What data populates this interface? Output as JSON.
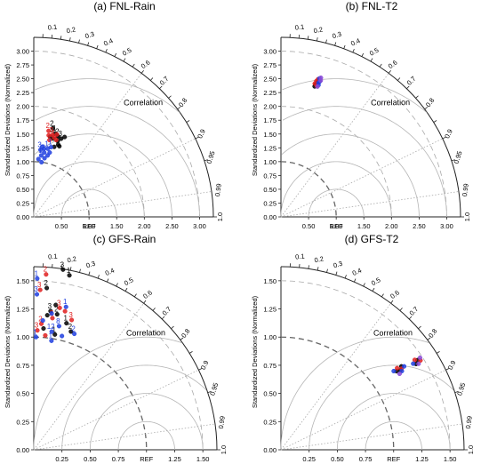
{
  "chart_data": [
    {
      "type": "scatter",
      "title": "(a) FNL-Rain",
      "ylabel": "Standardized Deviations (Normalized)",
      "corr_label": "Correlation",
      "ref_label": "REF",
      "max_sd": 3.25,
      "y_ticks": [
        "0.00",
        "0.25",
        "0.50",
        "0.75",
        "1.00",
        "1.25",
        "1.50",
        "1.75",
        "2.00",
        "2.25",
        "2.50",
        "2.75",
        "3.00"
      ],
      "x_ticks": [
        "0.50",
        "1.00",
        "1.50",
        "2.00",
        "2.50",
        "3.00"
      ],
      "x_tick_values": [
        0.5,
        1.0,
        1.5,
        2.0,
        2.5,
        3.0
      ],
      "corr_labels": [
        "0.1",
        "0.2",
        "0.3",
        "0.4",
        "0.5",
        "0.6",
        "0.7",
        "0.8",
        "0.9",
        "0.95",
        "0.99",
        "1.0"
      ],
      "rms_circles": [
        0.5,
        1.0,
        1.5,
        2.0,
        2.5
      ],
      "dashed_sd": [
        1.0,
        2.0,
        3.0
      ],
      "series": [
        {
          "color": "#000000",
          "points": [
            {
              "r": 1.64,
              "c": 0.21,
              "label": "2"
            },
            {
              "r": 1.56,
              "c": 0.25,
              "label": "1"
            },
            {
              "r": 1.52,
              "c": 0.29,
              "label": "2"
            },
            {
              "r": 1.46,
              "c": 0.24,
              "label": "3"
            },
            {
              "r": 1.44,
              "c": 0.3,
              "label": "3"
            },
            {
              "r": 1.38,
              "c": 0.32,
              "label": ""
            },
            {
              "r": 1.32,
              "c": 0.28,
              "label": ""
            },
            {
              "r": 1.36,
              "c": 0.34,
              "label": ""
            },
            {
              "r": 1.5,
              "c": 0.33,
              "label": "3"
            },
            {
              "r": 1.55,
              "c": 0.36,
              "label": ""
            },
            {
              "r": 1.48,
              "c": 0.2,
              "label": ""
            }
          ]
        },
        {
          "color": "#e02020",
          "points": [
            {
              "r": 1.58,
              "c": 0.17,
              "label": "2"
            },
            {
              "r": 1.52,
              "c": 0.22,
              "label": "3"
            },
            {
              "r": 1.48,
              "c": 0.25,
              "label": "1"
            },
            {
              "r": 1.5,
              "c": 0.18,
              "label": ""
            },
            {
              "r": 1.45,
              "c": 0.28,
              "label": ""
            },
            {
              "r": 1.42,
              "c": 0.2,
              "label": ""
            },
            {
              "r": 1.55,
              "c": 0.27,
              "label": ""
            }
          ]
        },
        {
          "color": "#2040e0",
          "points": [
            {
              "r": 1.22,
              "c": 0.1,
              "label": "3"
            },
            {
              "r": 1.18,
              "c": 0.16,
              "label": "2"
            },
            {
              "r": 1.26,
              "c": 0.2,
              "label": "1"
            },
            {
              "r": 1.12,
              "c": 0.12,
              "label": "1"
            },
            {
              "r": 1.05,
              "c": 0.08,
              "label": ""
            },
            {
              "r": 1.3,
              "c": 0.24,
              "label": "1"
            },
            {
              "r": 1.2,
              "c": 0.24,
              "label": ""
            },
            {
              "r": 1.08,
              "c": 0.18,
              "label": ""
            },
            {
              "r": 1.14,
              "c": 0.22,
              "label": ""
            },
            {
              "r": 1.25,
              "c": 0.15,
              "label": ""
            },
            {
              "r": 1.0,
              "c": 0.14,
              "label": ""
            },
            {
              "r": 1.28,
              "c": 0.12,
              "label": ""
            }
          ]
        }
      ]
    },
    {
      "type": "scatter",
      "title": "(b) FNL-T2",
      "ylabel": "Standardized Deviations (Normalized)",
      "corr_label": "Correlation",
      "ref_label": "REF",
      "max_sd": 3.25,
      "y_ticks": [
        "0.00",
        "0.25",
        "0.50",
        "0.75",
        "1.00",
        "1.25",
        "1.50",
        "1.75",
        "2.00",
        "2.25",
        "2.50",
        "2.75",
        "3.00"
      ],
      "x_ticks": [
        "0.50",
        "1.00",
        "1.50",
        "2.00",
        "2.50",
        "3.00"
      ],
      "x_tick_values": [
        0.5,
        1.0,
        1.5,
        2.0,
        2.5,
        3.0
      ],
      "corr_labels": [
        "0.1",
        "0.2",
        "0.3",
        "0.4",
        "0.5",
        "0.6",
        "0.7",
        "0.8",
        "0.9",
        "0.95",
        "0.99",
        "1.0"
      ],
      "rms_circles": [
        0.5,
        1.0,
        1.5,
        2.0,
        2.5
      ],
      "dashed_sd": [
        1.0,
        2.0,
        3.0
      ],
      "series": [
        {
          "color": "#000000",
          "points": [
            {
              "r": 2.47,
              "c": 0.252,
              "label": ""
            },
            {
              "r": 2.5,
              "c": 0.258,
              "label": ""
            },
            {
              "r": 2.53,
              "c": 0.262,
              "label": ""
            },
            {
              "r": 2.44,
              "c": 0.25,
              "label": ""
            },
            {
              "r": 2.56,
              "c": 0.266,
              "label": ""
            }
          ]
        },
        {
          "color": "#e02020",
          "points": [
            {
              "r": 2.49,
              "c": 0.246,
              "label": ""
            },
            {
              "r": 2.54,
              "c": 0.252,
              "label": ""
            },
            {
              "r": 2.58,
              "c": 0.26,
              "label": ""
            },
            {
              "r": 2.46,
              "c": 0.262,
              "label": ""
            }
          ]
        },
        {
          "color": "#2040e0",
          "points": [
            {
              "r": 2.52,
              "c": 0.27,
              "label": ""
            },
            {
              "r": 2.6,
              "c": 0.268,
              "label": ""
            },
            {
              "r": 2.48,
              "c": 0.274,
              "label": ""
            },
            {
              "r": 2.55,
              "c": 0.276,
              "label": ""
            }
          ]
        },
        {
          "color": "#8a4ad6",
          "points": [
            {
              "r": 2.57,
              "c": 0.28,
              "label": ""
            },
            {
              "r": 2.62,
              "c": 0.276,
              "label": ""
            },
            {
              "r": 2.45,
              "c": 0.27,
              "label": ""
            }
          ]
        }
      ]
    },
    {
      "type": "scatter",
      "title": "(c) GFS-Rain",
      "ylabel": "Standardized Deviations (Normalized)",
      "corr_label": "Correlation",
      "ref_label": "REF",
      "max_sd": 1.625,
      "y_ticks": [
        "0.00",
        "0.25",
        "0.50",
        "0.75",
        "1.00",
        "1.25",
        "1.50"
      ],
      "x_ticks": [
        "0.25",
        "0.50",
        "0.75",
        "REF",
        "1.25",
        "1.50"
      ],
      "x_tick_values": [
        0.25,
        0.5,
        0.75,
        1.0,
        1.25,
        1.5
      ],
      "corr_labels": [
        "0.1",
        "0.2",
        "0.3",
        "0.4",
        "0.5",
        "0.6",
        "0.7",
        "0.8",
        "0.9",
        "0.95",
        "0.99",
        "1.0"
      ],
      "rms_circles": [
        0.25,
        0.5,
        0.75,
        1.0
      ],
      "dashed_sd": [
        1.0,
        1.5
      ],
      "series": [
        {
          "color": "#000000",
          "points": [
            {
              "r": 1.62,
              "c": 0.16,
              "label": "3"
            },
            {
              "r": 1.58,
              "c": 0.2,
              "label": "1"
            },
            {
              "r": 1.44,
              "c": 0.08,
              "label": "2"
            },
            {
              "r": 1.24,
              "c": 0.12,
              "label": "3"
            },
            {
              "r": 1.22,
              "c": 0.17,
              "label": "2"
            },
            {
              "r": 1.08,
              "c": 0.08,
              "label": ""
            },
            {
              "r": 1.16,
              "c": 0.25,
              "label": "1"
            },
            {
              "r": 1.1,
              "c": 0.3,
              "label": "2"
            },
            {
              "r": 1.04,
              "c": 0.18,
              "label": "1"
            },
            {
              "r": 1.3,
              "c": 0.15,
              "label": ""
            },
            {
              "r": 1.2,
              "c": 0.1,
              "label": ""
            }
          ]
        },
        {
          "color": "#e02020",
          "points": [
            {
              "r": 1.56,
              "c": 0.07,
              "label": "2"
            },
            {
              "r": 1.42,
              "c": 0.04,
              "label": "3"
            },
            {
              "r": 1.28,
              "c": 0.18,
              "label": "3"
            },
            {
              "r": 1.2,
              "c": 0.28,
              "label": "3"
            },
            {
              "r": 1.18,
              "c": 0.14,
              "label": "2"
            },
            {
              "r": 1.12,
              "c": 0.06,
              "label": "2"
            },
            {
              "r": 1.06,
              "c": 0.03,
              "label": "3"
            },
            {
              "r": 1.26,
              "c": 0.22,
              "label": ""
            },
            {
              "r": 1.02,
              "c": 0.1,
              "label": ""
            }
          ]
        },
        {
          "color": "#2040e0",
          "points": [
            {
              "r": 1.52,
              "c": 0.02,
              "label": "1"
            },
            {
              "r": 1.38,
              "c": 0.02,
              "label": "3"
            },
            {
              "r": 1.3,
              "c": 0.22,
              "label": "1"
            },
            {
              "r": 1.12,
              "c": 0.2,
              "label": "8"
            },
            {
              "r": 1.06,
              "c": 0.15,
              "label": "12"
            },
            {
              "r": 1.09,
              "c": 0.33,
              "label": "2"
            },
            {
              "r": 1.0,
              "c": 0.02,
              "label": "1"
            },
            {
              "r": 0.98,
              "c": 0.16,
              "label": "1"
            },
            {
              "r": 1.04,
              "c": 0.24,
              "label": ""
            },
            {
              "r": 1.22,
              "c": 0.13,
              "label": ""
            },
            {
              "r": 1.15,
              "c": 0.07,
              "label": ""
            }
          ]
        }
      ]
    },
    {
      "type": "scatter",
      "title": "(d) GFS-T2",
      "ylabel": "Standardized Deviations (Normalized)",
      "corr_label": "Correlation",
      "ref_label": "REF",
      "max_sd": 1.625,
      "y_ticks": [
        "0.00",
        "0.25",
        "0.50",
        "0.75",
        "1.00",
        "1.25",
        "1.50"
      ],
      "x_ticks": [
        "0.25",
        "0.50",
        "0.75",
        "REF",
        "1.25",
        "1.50"
      ],
      "x_tick_values": [
        0.25,
        0.5,
        0.75,
        1.0,
        1.25,
        1.5
      ],
      "corr_labels": [
        "0.1",
        "0.2",
        "0.3",
        "0.4",
        "0.5",
        "0.6",
        "0.7",
        "0.8",
        "0.9",
        "0.95",
        "0.99",
        "1.0"
      ],
      "rms_circles": [
        0.25,
        0.5,
        0.75,
        1.0
      ],
      "dashed_sd": [
        1.0,
        1.5
      ],
      "series": [
        {
          "color": "#000000",
          "points": [
            {
              "r": 1.24,
              "c": 0.827,
              "label": ""
            },
            {
              "r": 1.27,
              "c": 0.832,
              "label": ""
            },
            {
              "r": 1.3,
              "c": 0.822,
              "label": ""
            },
            {
              "r": 1.42,
              "c": 0.844,
              "label": ""
            },
            {
              "r": 1.45,
              "c": 0.836,
              "label": ""
            }
          ]
        },
        {
          "color": "#e02020",
          "points": [
            {
              "r": 1.26,
              "c": 0.818,
              "label": ""
            },
            {
              "r": 1.29,
              "c": 0.83,
              "label": ""
            },
            {
              "r": 1.43,
              "c": 0.83,
              "label": ""
            },
            {
              "r": 1.47,
              "c": 0.842,
              "label": ""
            }
          ]
        },
        {
          "color": "#2040e0",
          "points": [
            {
              "r": 1.22,
              "c": 0.82,
              "label": ""
            },
            {
              "r": 1.28,
              "c": 0.838,
              "label": ""
            },
            {
              "r": 1.32,
              "c": 0.828,
              "label": ""
            },
            {
              "r": 1.4,
              "c": 0.838,
              "label": ""
            }
          ]
        },
        {
          "color": "#8a4ad6",
          "points": [
            {
              "r": 1.44,
              "c": 0.848,
              "label": ""
            },
            {
              "r": 1.48,
              "c": 0.834,
              "label": ""
            },
            {
              "r": 1.25,
              "c": 0.842,
              "label": ""
            }
          ]
        }
      ]
    }
  ]
}
